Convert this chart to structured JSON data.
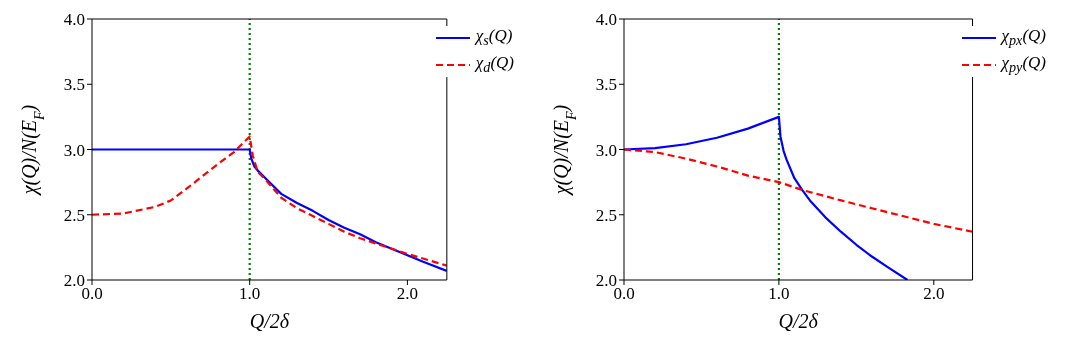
{
  "chart_data": [
    {
      "type": "line",
      "xlabel": "Q/2δ",
      "ylabel": "χ(Q)/N(E$_{F}$)",
      "xlim": [
        0,
        2.25
      ],
      "ylim": [
        2.0,
        4.0
      ],
      "xticks": [
        {
          "value": 0,
          "label": "0.0"
        },
        {
          "value": 1,
          "label": "1.0"
        },
        {
          "value": 2,
          "label": "2.0"
        }
      ],
      "yticks": [
        {
          "value": 2,
          "label": "2.0"
        },
        {
          "value": 2.5,
          "label": "2.5"
        },
        {
          "value": 3,
          "label": "3.0"
        },
        {
          "value": 3.5,
          "label": "3.5"
        },
        {
          "value": 4,
          "label": "4.0"
        }
      ],
      "legend": "top right",
      "grid": false,
      "ref_lines": [
        {
          "axis": "x",
          "value": 1,
          "color": "#008000",
          "line_style": "dotted"
        }
      ],
      "series": [
        {
          "name": "χ$_{s}$(Q)",
          "color": "#0000ff",
          "line_style": "solid",
          "x": [
            0,
            0.5,
            1.0,
            1.01,
            1.03,
            1.05,
            1.1,
            1.2,
            1.3,
            1.4,
            1.5,
            1.6,
            1.7,
            1.8,
            1.9,
            2.0,
            2.1,
            2.25
          ],
          "values": [
            3.0,
            3.0,
            3.0,
            2.93,
            2.87,
            2.84,
            2.78,
            2.66,
            2.59,
            2.53,
            2.46,
            2.4,
            2.35,
            2.29,
            2.24,
            2.19,
            2.14,
            2.07
          ]
        },
        {
          "name": "χ$_{d}$(Q)",
          "color": "#ff0000",
          "line_style": "dashed",
          "x": [
            0,
            0.2,
            0.4,
            0.5,
            0.6,
            0.8,
            0.9,
            0.95,
            1.0,
            1.02,
            1.05,
            1.1,
            1.2,
            1.3,
            1.4,
            1.5,
            1.6,
            1.7,
            1.8,
            2.0,
            2.25
          ],
          "values": [
            2.5,
            2.51,
            2.56,
            2.61,
            2.7,
            2.89,
            2.98,
            3.04,
            3.1,
            2.95,
            2.83,
            2.77,
            2.63,
            2.55,
            2.49,
            2.43,
            2.37,
            2.32,
            2.28,
            2.2,
            2.11
          ]
        }
      ]
    },
    {
      "type": "line",
      "xlabel": "Q/2δ",
      "ylabel": "χ(Q)/N(E$_{F}$)",
      "xlim": [
        0,
        2.25
      ],
      "ylim": [
        2.0,
        4.0
      ],
      "xticks": [
        {
          "value": 0,
          "label": "0.0"
        },
        {
          "value": 1,
          "label": "1.0"
        },
        {
          "value": 2,
          "label": "2.0"
        }
      ],
      "yticks": [
        {
          "value": 2,
          "label": "2.0"
        },
        {
          "value": 2.5,
          "label": "2.5"
        },
        {
          "value": 3,
          "label": "3.0"
        },
        {
          "value": 3.5,
          "label": "3.5"
        },
        {
          "value": 4,
          "label": "4.0"
        }
      ],
      "legend": "top right",
      "grid": false,
      "ref_lines": [
        {
          "axis": "x",
          "value": 1,
          "color": "#008000",
          "line_style": "dotted"
        }
      ],
      "series": [
        {
          "name": "χ$_{px}$(Q)",
          "color": "#0000ff",
          "line_style": "solid",
          "x": [
            0,
            0.2,
            0.4,
            0.6,
            0.8,
            1.0,
            1.01,
            1.03,
            1.05,
            1.1,
            1.15,
            1.2,
            1.3,
            1.4,
            1.5,
            1.6,
            1.7,
            1.83
          ],
          "values": [
            3.0,
            3.01,
            3.04,
            3.09,
            3.16,
            3.25,
            3.1,
            2.99,
            2.92,
            2.78,
            2.69,
            2.61,
            2.48,
            2.37,
            2.27,
            2.18,
            2.1,
            2.0
          ]
        },
        {
          "name": "χ$_{py}$(Q)",
          "color": "#ff0000",
          "line_style": "dashed",
          "x": [
            0,
            0.2,
            0.4,
            0.6,
            0.8,
            1.0,
            1.15,
            1.4,
            1.6,
            1.8,
            2.0,
            2.25
          ],
          "values": [
            3.0,
            2.98,
            2.93,
            2.87,
            2.8,
            2.75,
            2.69,
            2.61,
            2.55,
            2.49,
            2.43,
            2.37
          ]
        }
      ]
    }
  ]
}
